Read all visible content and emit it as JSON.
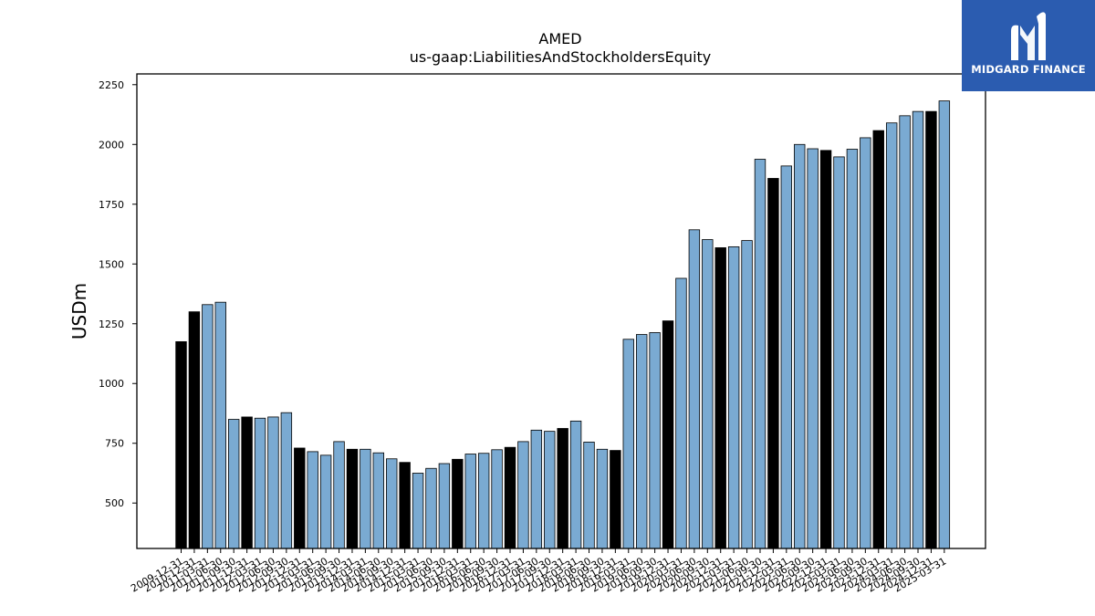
{
  "chart_data": {
    "type": "bar",
    "title": "AMED",
    "subtitle": "us-gaap:LiabilitiesAndStockholdersEquity",
    "xlabel": "",
    "ylabel": "USDm",
    "ylim": [
      310,
      2295
    ],
    "yticks": [
      500,
      750,
      1000,
      1250,
      1500,
      1750,
      2000,
      2250
    ],
    "grid": false,
    "colors": {
      "annual": "#000000",
      "quarterly": "#7aaad2",
      "edge": "#000000"
    },
    "categories": [
      "2009-12-31",
      "2010-12-31",
      "2011-03-31",
      "2011-06-30",
      "2011-09-30",
      "2011-12-31",
      "2012-03-31",
      "2012-06-30",
      "2012-09-30",
      "2012-12-31",
      "2013-03-31",
      "2013-06-30",
      "2013-09-30",
      "2013-12-31",
      "2014-03-31",
      "2014-06-30",
      "2014-09-30",
      "2014-12-31",
      "2015-03-31",
      "2015-06-30",
      "2015-09-30",
      "2015-12-31",
      "2016-03-31",
      "2016-06-30",
      "2016-09-30",
      "2016-12-31",
      "2017-03-31",
      "2017-06-30",
      "2017-09-30",
      "2017-12-31",
      "2018-03-31",
      "2018-06-30",
      "2018-09-30",
      "2018-12-31",
      "2019-03-31",
      "2019-06-30",
      "2019-09-30",
      "2019-12-31",
      "2020-03-31",
      "2020-06-30",
      "2020-09-30",
      "2020-12-31",
      "2021-03-31",
      "2021-06-30",
      "2021-09-30",
      "2021-12-31",
      "2022-03-31",
      "2022-06-30",
      "2022-09-30",
      "2022-12-31",
      "2023-03-31",
      "2023-06-30",
      "2023-09-30",
      "2023-12-31",
      "2024-03-31",
      "2024-06-30",
      "2024-09-30",
      "2024-12-31",
      "2025-03-31"
    ],
    "values": [
      1175,
      1300,
      1330,
      1340,
      850,
      860,
      855,
      860,
      878,
      730,
      715,
      700,
      757,
      725,
      725,
      710,
      685,
      670,
      625,
      645,
      665,
      683,
      705,
      708,
      723,
      733,
      757,
      805,
      800,
      812,
      843,
      755,
      725,
      720,
      1185,
      1205,
      1213,
      1262,
      1440,
      1643,
      1602,
      1568,
      1572,
      1598,
      1938,
      1858,
      1910,
      2000,
      1982,
      1975,
      1948,
      1980,
      2028,
      2058,
      2090,
      2120,
      2138,
      2138,
      2182
    ],
    "annual": [
      true,
      true,
      false,
      false,
      false,
      true,
      false,
      false,
      false,
      true,
      false,
      false,
      false,
      true,
      false,
      false,
      false,
      true,
      false,
      false,
      false,
      true,
      false,
      false,
      false,
      true,
      false,
      false,
      false,
      true,
      false,
      false,
      false,
      true,
      false,
      false,
      false,
      true,
      false,
      false,
      false,
      true,
      false,
      false,
      false,
      true,
      false,
      false,
      false,
      true,
      false,
      false,
      false,
      true,
      false,
      false,
      false,
      true,
      false
    ]
  },
  "logo": {
    "text": "MIDGARD FINANCE",
    "color": "#2b5cb0"
  }
}
